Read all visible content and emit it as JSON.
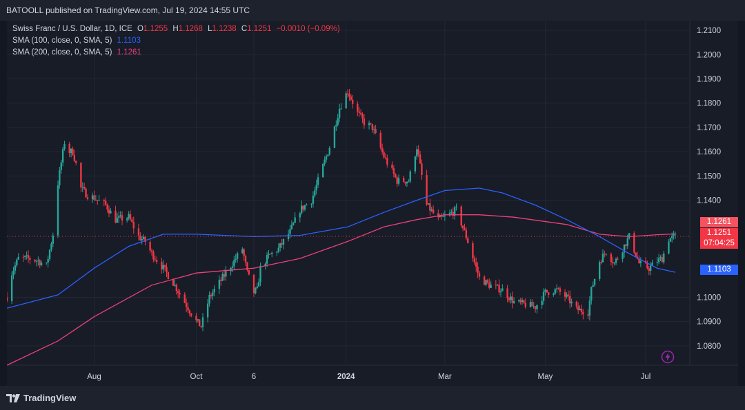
{
  "header": {
    "publisher": "BATOOLL published on TradingView.com, Jul 19, 2024 14:55 UTC"
  },
  "legend": {
    "symbol": "Swiss Franc / U.S. Dollar, 1D, ICE",
    "ohlc": [
      {
        "key": "O",
        "value": "1.1255"
      },
      {
        "key": "H",
        "value": "1.1268"
      },
      {
        "key": "L",
        "value": "1.1238"
      },
      {
        "key": "C",
        "value": "1.1251"
      }
    ],
    "change": "−0.0010 (−0.09%)",
    "sma100_label": "SMA (100, close, 0, SMA, 5)",
    "sma100_value": "1.1103",
    "sma200_label": "SMA (200, close, 0, SMA, 5)",
    "sma200_value": "1.1261"
  },
  "price_labels": {
    "sma200": "1.1261",
    "last": "1.1251",
    "countdown": "07:04:25",
    "sma100": "1.1103"
  },
  "footer": {
    "brand": "TradingView"
  },
  "colors": {
    "up": "#26a69a",
    "down": "#f23645",
    "sma100": "#2962ff",
    "sma200": "#ec407a",
    "background": "#181c27",
    "grid": "#232735",
    "axis_text": "#d1d4dc"
  },
  "chart_data": {
    "type": "candlestick",
    "symbol": "Swiss Franc / U.S. Dollar",
    "timeframe": "1D",
    "ylim": [
      1.072,
      1.214
    ],
    "y_ticks": [
      "1.2100",
      "1.2000",
      "1.1900",
      "1.1800",
      "1.1700",
      "1.1600",
      "1.1500",
      "1.1400",
      "1.1000",
      "1.0900",
      "1.0800"
    ],
    "x_tick_labels": [
      "Aug",
      "Oct",
      "6",
      "2024",
      "Mar",
      "May",
      "Jul"
    ],
    "x_tick_dates": [
      "2023-08-01",
      "2023-10-02",
      "2023-11-06",
      "2024-01-01",
      "2024-03-01",
      "2024-05-01",
      "2024-07-01"
    ],
    "x_range": [
      "2023-06-09",
      "2024-08-01"
    ],
    "price_path": {
      "dates": [
        "2023-06-09",
        "2023-06-12",
        "2023-06-16",
        "2023-06-22",
        "2023-06-28",
        "2023-07-03",
        "2023-07-07",
        "2023-07-10",
        "2023-07-14",
        "2023-07-17",
        "2023-07-19",
        "2023-07-21",
        "2023-07-24",
        "2023-07-28",
        "2023-08-01",
        "2023-08-08",
        "2023-08-14",
        "2023-08-22",
        "2023-08-28",
        "2023-09-01",
        "2023-09-05",
        "2023-09-12",
        "2023-09-18",
        "2023-09-25",
        "2023-10-02",
        "2023-10-05",
        "2023-10-10",
        "2023-10-16",
        "2023-10-23",
        "2023-10-30",
        "2023-11-02",
        "2023-11-06",
        "2023-11-08",
        "2023-11-10",
        "2023-11-15",
        "2023-11-21",
        "2023-11-28",
        "2023-12-04",
        "2023-12-11",
        "2023-12-18",
        "2023-12-22",
        "2023-12-28",
        "2024-01-02",
        "2024-01-08",
        "2024-01-12",
        "2024-01-17",
        "2024-01-24",
        "2024-02-01",
        "2024-02-08",
        "2024-02-13",
        "2024-02-19",
        "2024-02-26",
        "2024-03-01",
        "2024-03-08",
        "2024-03-14",
        "2024-03-22",
        "2024-03-28",
        "2024-04-05",
        "2024-04-12",
        "2024-04-19",
        "2024-04-25",
        "2024-05-01",
        "2024-05-08",
        "2024-05-14",
        "2024-05-20",
        "2024-05-27",
        "2024-05-29",
        "2024-06-03",
        "2024-06-07",
        "2024-06-12",
        "2024-06-17",
        "2024-06-21",
        "2024-06-27",
        "2024-07-03",
        "2024-07-08",
        "2024-07-11",
        "2024-07-15",
        "2024-07-19"
      ],
      "close": [
        1.1,
        1.11,
        1.116,
        1.116,
        1.115,
        1.113,
        1.126,
        1.147,
        1.164,
        1.16,
        1.16,
        1.155,
        1.145,
        1.142,
        1.141,
        1.138,
        1.132,
        1.133,
        1.125,
        1.123,
        1.118,
        1.112,
        1.106,
        1.098,
        1.09,
        1.088,
        1.1,
        1.106,
        1.113,
        1.12,
        1.11,
        1.102,
        1.103,
        1.112,
        1.117,
        1.12,
        1.127,
        1.136,
        1.14,
        1.154,
        1.162,
        1.178,
        1.185,
        1.176,
        1.172,
        1.17,
        1.158,
        1.148,
        1.148,
        1.162,
        1.138,
        1.132,
        1.133,
        1.136,
        1.125,
        1.108,
        1.105,
        1.103,
        1.098,
        1.097,
        1.096,
        1.102,
        1.103,
        1.1,
        1.095,
        1.094,
        1.103,
        1.115,
        1.119,
        1.114,
        1.12,
        1.125,
        1.114,
        1.112,
        1.115,
        1.116,
        1.124,
        1.1251
      ]
    },
    "sma100": {
      "dates": [
        "2023-06-09",
        "2023-07-10",
        "2023-08-01",
        "2023-08-22",
        "2023-09-12",
        "2023-10-02",
        "2023-11-06",
        "2023-12-04",
        "2024-01-02",
        "2024-01-24",
        "2024-02-13",
        "2024-03-01",
        "2024-03-22",
        "2024-04-05",
        "2024-04-25",
        "2024-05-14",
        "2024-06-03",
        "2024-06-21",
        "2024-07-08",
        "2024-07-19"
      ],
      "values": [
        1.0955,
        1.101,
        1.112,
        1.121,
        1.126,
        1.126,
        1.125,
        1.1255,
        1.129,
        1.135,
        1.14,
        1.144,
        1.145,
        1.143,
        1.138,
        1.132,
        1.125,
        1.118,
        1.112,
        1.1103
      ]
    },
    "sma200": {
      "dates": [
        "2023-06-09",
        "2023-07-10",
        "2023-08-01",
        "2023-09-05",
        "2023-10-02",
        "2023-11-06",
        "2023-12-04",
        "2024-01-02",
        "2024-01-24",
        "2024-02-13",
        "2024-03-01",
        "2024-03-22",
        "2024-04-12",
        "2024-05-14",
        "2024-06-03",
        "2024-06-21",
        "2024-07-08",
        "2024-07-19"
      ],
      "values": [
        1.072,
        1.082,
        1.092,
        1.105,
        1.11,
        1.112,
        1.116,
        1.123,
        1.129,
        1.132,
        1.134,
        1.134,
        1.133,
        1.13,
        1.126,
        1.125,
        1.1258,
        1.1261
      ]
    }
  }
}
